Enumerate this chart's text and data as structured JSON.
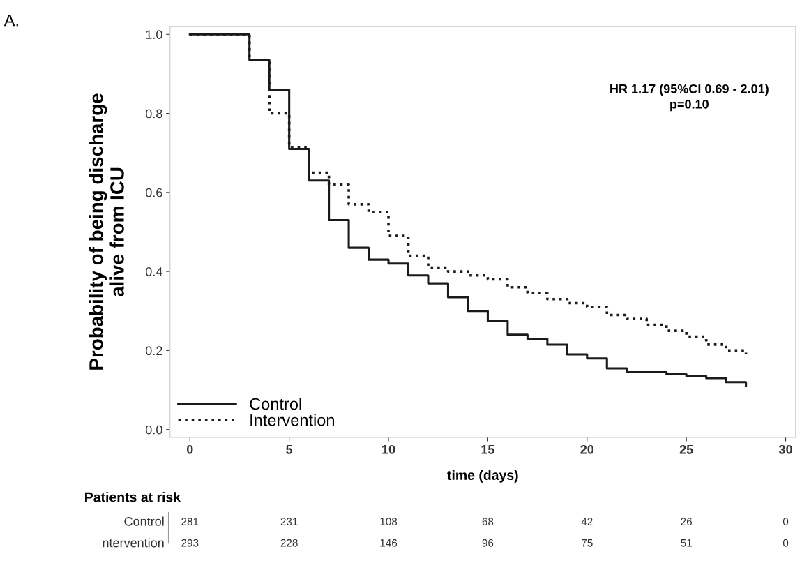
{
  "chart_data": {
    "type": "step",
    "xlabel": "time (days)",
    "ylabel": "Probability of being discharge\nalive from ICU",
    "x": [
      0,
      3,
      4,
      5,
      6,
      7,
      8,
      9,
      10,
      11,
      12,
      13,
      14,
      15,
      16,
      17,
      18,
      19,
      20,
      21,
      22,
      23,
      24,
      25,
      26,
      27,
      28
    ],
    "series": [
      {
        "name": "Control",
        "color": "#1a1a1a",
        "line_style": "solid",
        "values": [
          1.0,
          0.935,
          0.86,
          0.71,
          0.63,
          0.53,
          0.46,
          0.43,
          0.42,
          0.39,
          0.37,
          0.335,
          0.3,
          0.275,
          0.24,
          0.23,
          0.215,
          0.19,
          0.18,
          0.155,
          0.145,
          0.145,
          0.14,
          0.135,
          0.13,
          0.12,
          0.11
        ]
      },
      {
        "name": "Intervention",
        "color": "#1a1a1a",
        "line_style": "dotted",
        "values": [
          1.0,
          0.935,
          0.8,
          0.715,
          0.65,
          0.62,
          0.57,
          0.55,
          0.49,
          0.44,
          0.41,
          0.4,
          0.39,
          0.38,
          0.36,
          0.345,
          0.33,
          0.32,
          0.31,
          0.29,
          0.28,
          0.265,
          0.25,
          0.235,
          0.215,
          0.2,
          0.19
        ]
      }
    ],
    "xlim": [
      -1,
      30.5
    ],
    "ylim": [
      -0.02,
      1.02
    ],
    "xticks": [
      0,
      5,
      10,
      15,
      20,
      25,
      30
    ],
    "yticks": [
      {
        "value": 0,
        "label": "0.0"
      },
      {
        "value": 0.2,
        "label": "0.2"
      },
      {
        "value": 0.4,
        "label": "0.4"
      },
      {
        "value": 0.6,
        "label": "0.6"
      },
      {
        "value": 0.8,
        "label": "0.8"
      },
      {
        "value": 1,
        "label": "1.0"
      }
    ],
    "grid": false,
    "legend": "bottom left",
    "annotations": [
      "A.",
      "HR 1.17 (95%CI 0.69 - 2.01)\np=0.10",
      "Patients at risk",
      "Control",
      "281",
      "231",
      "108",
      "68",
      "42",
      "26",
      "0",
      "ntervention",
      "293",
      "228",
      "146",
      "96",
      "75",
      "51",
      "0"
    ]
  }
}
